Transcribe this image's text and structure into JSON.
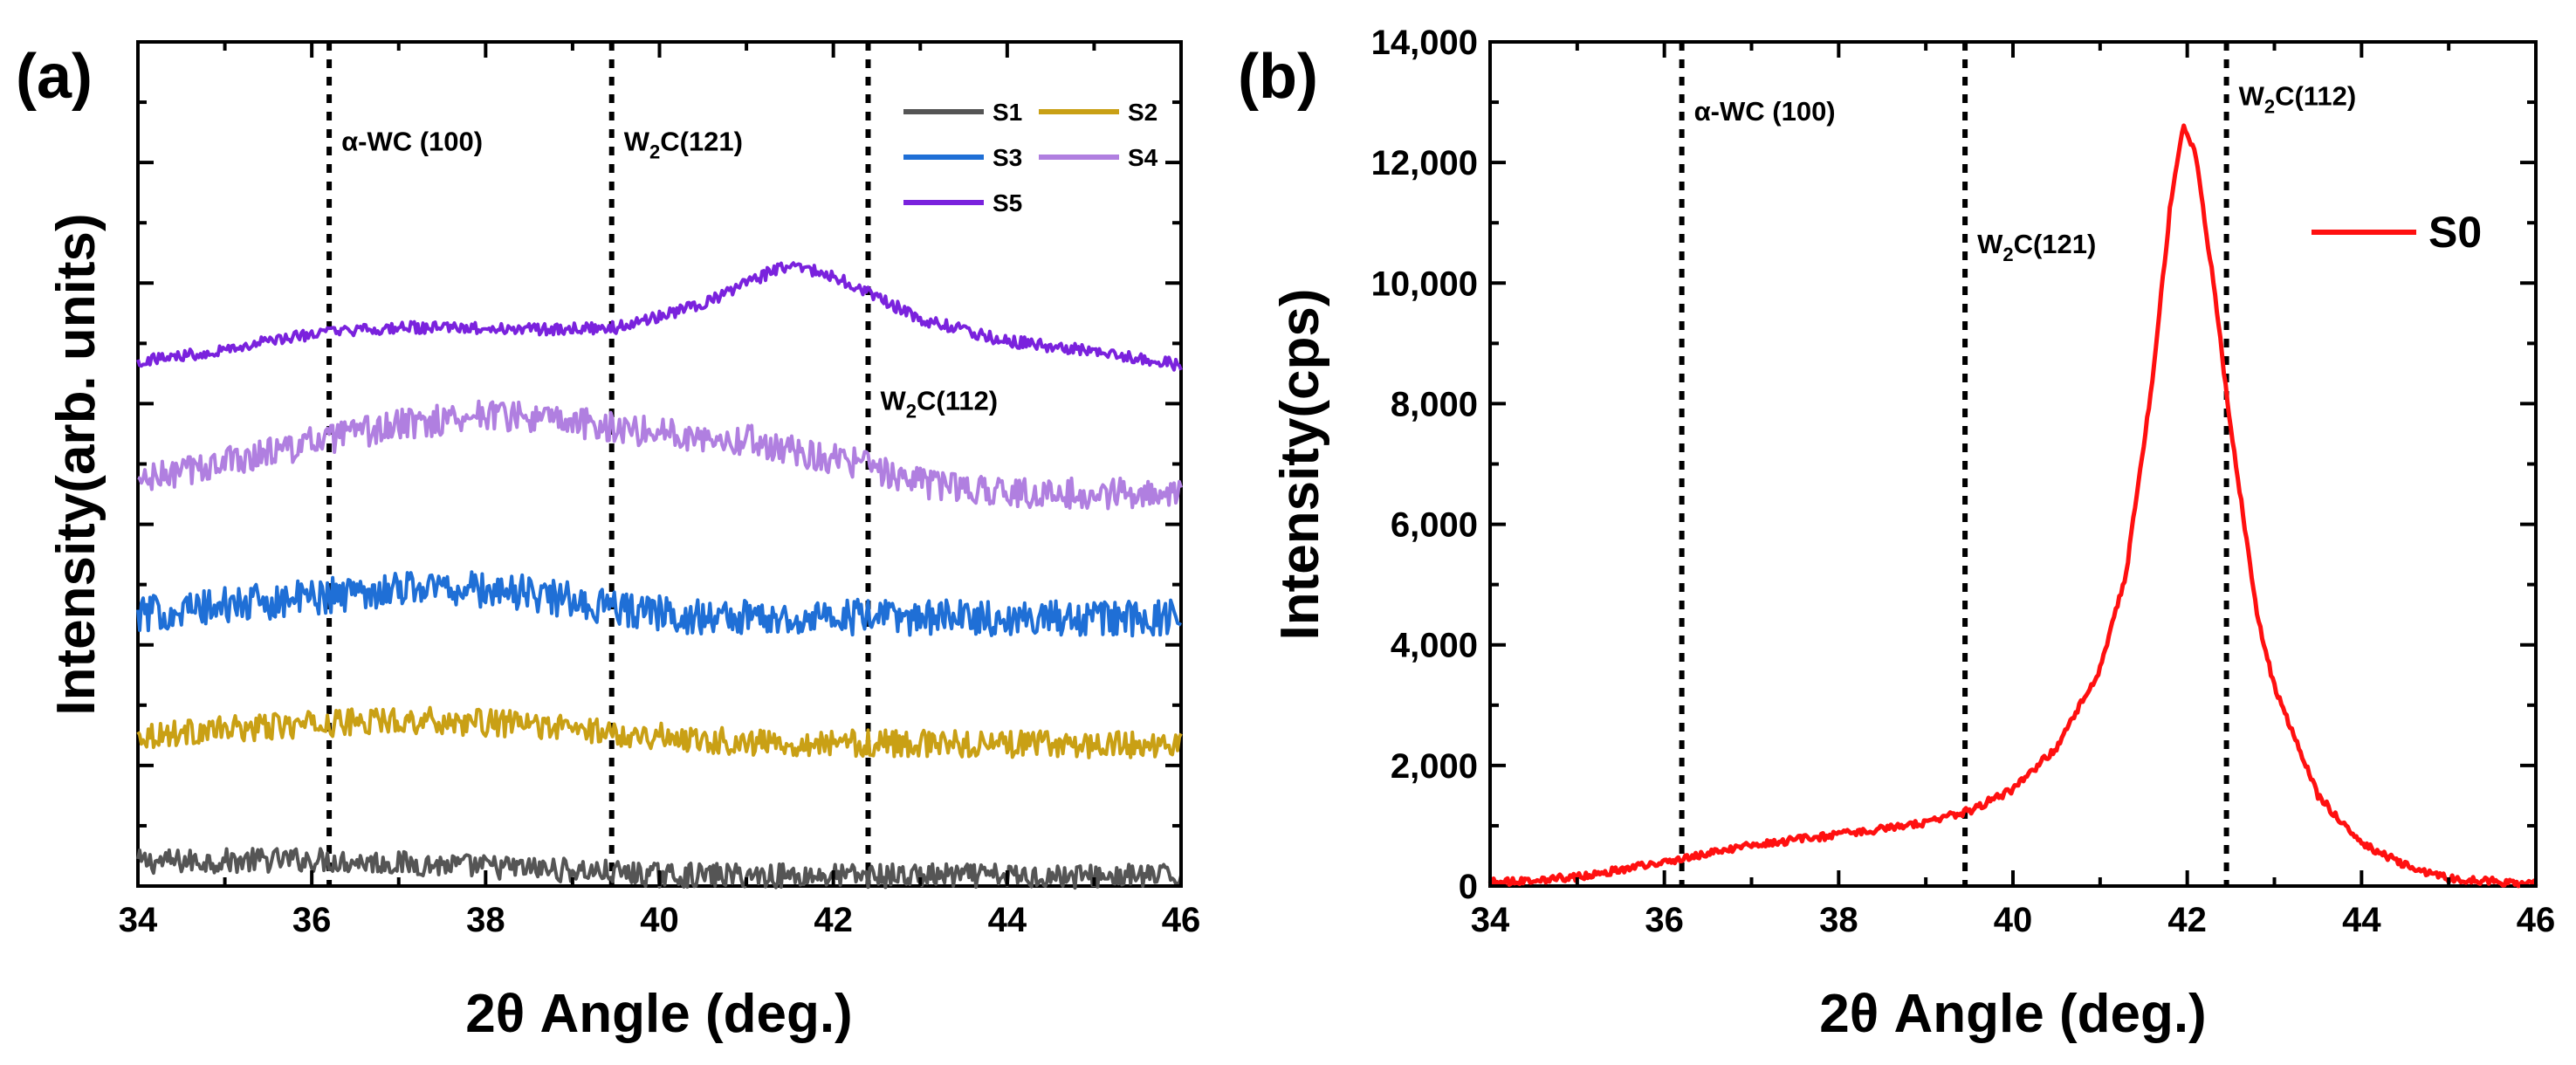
{
  "panels": [
    {
      "label": "(a)",
      "type": "line",
      "xlabel": "2θ Angle (deg.)",
      "ylabel": "Intensity(arb. units)",
      "xlim": [
        34,
        46
      ],
      "xticks": [
        "34",
        "36",
        "38",
        "40",
        "42",
        "44",
        "46"
      ],
      "ylim": [
        0,
        7
      ],
      "yticks_shown": false,
      "reference_lines": [
        {
          "x": 36.2,
          "label": "α-WC (100)",
          "label_at": 6.1
        },
        {
          "x": 39.45,
          "label": "W₂C(121)",
          "label_at": 6.1
        },
        {
          "x": 42.4,
          "label": "W₂C(112)",
          "label_at": 3.95
        }
      ],
      "legend": {
        "placement": "top-right",
        "columns": 2
      },
      "series": [
        {
          "name": "S1",
          "color": "#555555",
          "noise": 0.1,
          "profile": [
            [
              34,
              0.2
            ],
            [
              36,
              0.22
            ],
            [
              37,
              0.19
            ],
            [
              39,
              0.13
            ],
            [
              40,
              0.09
            ],
            [
              46,
              0.08
            ]
          ]
        },
        {
          "name": "S2",
          "color": "#C9A015",
          "noise": 0.11,
          "profile": [
            [
              34,
              1.25
            ],
            [
              35.5,
              1.32
            ],
            [
              37,
              1.38
            ],
            [
              38.5,
              1.34
            ],
            [
              39.5,
              1.27
            ],
            [
              41,
              1.19
            ],
            [
              46,
              1.17
            ]
          ]
        },
        {
          "name": "S3",
          "color": "#1f6fd6",
          "noise": 0.15,
          "profile": [
            [
              34,
              2.25
            ],
            [
              35.5,
              2.36
            ],
            [
              37.2,
              2.49
            ],
            [
              38.5,
              2.43
            ],
            [
              39.5,
              2.3
            ],
            [
              40.5,
              2.23
            ],
            [
              46,
              2.22
            ]
          ]
        },
        {
          "name": "S4",
          "color": "#b07fe0",
          "noise": 0.13,
          "profile": [
            [
              34,
              3.35
            ],
            [
              35.5,
              3.6
            ],
            [
              37,
              3.82
            ],
            [
              38,
              3.92
            ],
            [
              39.5,
              3.8
            ],
            [
              41,
              3.7
            ],
            [
              42,
              3.55
            ],
            [
              43,
              3.35
            ],
            [
              44,
              3.26
            ],
            [
              46,
              3.25
            ]
          ]
        },
        {
          "name": "S5",
          "color": "#7a22dd",
          "noise": 0.05,
          "profile": [
            [
              34,
              4.35
            ],
            [
              35,
              4.45
            ],
            [
              36,
              4.58
            ],
            [
              37,
              4.63
            ],
            [
              38.5,
              4.62
            ],
            [
              39.5,
              4.63
            ],
            [
              40.5,
              4.82
            ],
            [
              41.3,
              5.1
            ],
            [
              41.6,
              5.15
            ],
            [
              42.2,
              5.0
            ],
            [
              43,
              4.7
            ],
            [
              44,
              4.52
            ],
            [
              45,
              4.43
            ],
            [
              46,
              4.32
            ]
          ]
        }
      ]
    },
    {
      "label": "(b)",
      "type": "line",
      "xlabel": "2θ Angle (deg.)",
      "ylabel": "Intensity(cps)",
      "xlim": [
        34,
        46
      ],
      "xticks": [
        "34",
        "36",
        "38",
        "40",
        "42",
        "44",
        "46"
      ],
      "ylim": [
        0,
        14000
      ],
      "yticks": [
        0,
        2000,
        4000,
        6000,
        8000,
        10000,
        12000,
        14000
      ],
      "ytick_labels": [
        "0",
        "2,000",
        "4,000",
        "6,000",
        "8,000",
        "10,000",
        "12,000",
        "14,000"
      ],
      "reference_lines": [
        {
          "x": 36.2,
          "label": "α-WC (100)",
          "label_at": 12700
        },
        {
          "x": 39.45,
          "label": "W₂C(121)",
          "label_at": 10500
        },
        {
          "x": 42.45,
          "label": "W₂C(112)",
          "label_at": 12950
        }
      ],
      "legend": {
        "placement": "right",
        "columns": 1
      },
      "series": [
        {
          "name": "S0",
          "color": "#ff1010",
          "noise": 60,
          "profile": [
            [
              34,
              60
            ],
            [
              35,
              150
            ],
            [
              36,
              400
            ],
            [
              37,
              680
            ],
            [
              38,
              850
            ],
            [
              39,
              1050
            ],
            [
              39.5,
              1250
            ],
            [
              40,
              1600
            ],
            [
              40.5,
              2300
            ],
            [
              41,
              3600
            ],
            [
              41.3,
              5200
            ],
            [
              41.6,
              8400
            ],
            [
              41.8,
              11200
            ],
            [
              41.95,
              12650
            ],
            [
              42.1,
              12100
            ],
            [
              42.3,
              10000
            ],
            [
              42.5,
              7600
            ],
            [
              42.8,
              4500
            ],
            [
              43,
              3300
            ],
            [
              43.5,
              1500
            ],
            [
              44,
              700
            ],
            [
              44.5,
              350
            ],
            [
              45,
              120
            ],
            [
              46,
              40
            ]
          ]
        }
      ]
    }
  ]
}
